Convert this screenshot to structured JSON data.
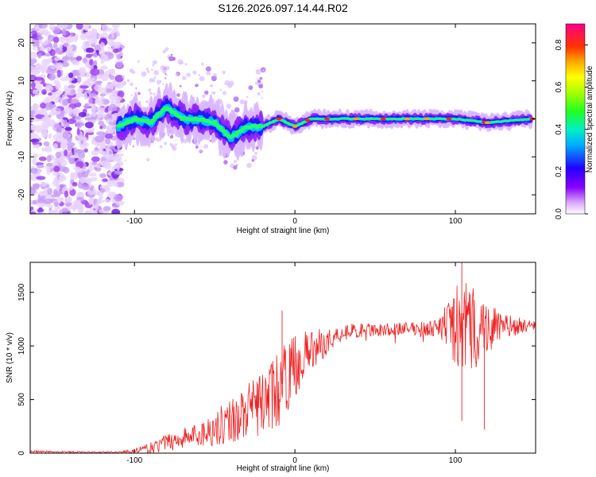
{
  "title": "S126.2026.097.14.44.R02",
  "chart_data": [
    {
      "type": "heatmap",
      "xlabel": "Height of straight line (km)",
      "ylabel": "Frequency (Hz)",
      "xlim": [
        -165,
        150
      ],
      "ylim": [
        -25,
        25
      ],
      "xticks": [
        {
          "value": -100,
          "label": "-100"
        },
        {
          "value": 0,
          "label": "0"
        },
        {
          "value": 100,
          "label": "100"
        }
      ],
      "yticks": [
        {
          "value": -20,
          "label": "-20"
        },
        {
          "value": -10,
          "label": "-10"
        },
        {
          "value": 0,
          "label": "0"
        },
        {
          "value": 10,
          "label": "10"
        },
        {
          "value": 20,
          "label": "20"
        }
      ],
      "ridge": {
        "x": [
          -110,
          -100,
          -90,
          -80,
          -70,
          -60,
          -50,
          -40,
          -30,
          -20,
          -10,
          0,
          10,
          20,
          40,
          60,
          80,
          100,
          120,
          148
        ],
        "frequency": [
          -2,
          0,
          -1,
          3,
          0,
          0,
          -1,
          -5,
          -2,
          -2,
          0,
          -2,
          0,
          0,
          0,
          0,
          0,
          0,
          -1,
          0
        ]
      },
      "noise_region": {
        "x_start": -165,
        "x_end": -108
      },
      "colorbar": {
        "label": "Normalized spectral amplitude",
        "range": [
          0,
          0.9
        ],
        "ticks": [
          {
            "value": 0.0,
            "label": "0.0"
          },
          {
            "value": 0.2,
            "label": "0.2"
          },
          {
            "value": 0.4,
            "label": "0.4"
          },
          {
            "value": 0.6,
            "label": "0.6"
          },
          {
            "value": 0.8,
            "label": "0.8"
          }
        ]
      }
    },
    {
      "type": "line",
      "xlabel": "Height of straight line (km)",
      "ylabel": "SNR (10 * v/v)",
      "xlim": [
        -165,
        150
      ],
      "ylim": [
        0,
        1780
      ],
      "color": "#ee2222",
      "xticks": [
        {
          "value": -100,
          "label": "-100"
        },
        {
          "value": 0,
          "label": "0"
        },
        {
          "value": 100,
          "label": "100"
        }
      ],
      "yticks": [
        {
          "value": 0,
          "label": "0"
        },
        {
          "value": 500,
          "label": "500"
        },
        {
          "value": 1000,
          "label": "1000"
        },
        {
          "value": 1500,
          "label": "1500"
        }
      ],
      "envelope": {
        "x": [
          -165,
          -130,
          -110,
          -100,
          -90,
          -80,
          -70,
          -60,
          -50,
          -40,
          -30,
          -20,
          -10,
          0,
          10,
          20,
          30,
          50,
          70,
          90,
          100,
          110,
          120,
          130,
          150
        ],
        "base": [
          15,
          8,
          10,
          20,
          40,
          100,
          140,
          170,
          230,
          310,
          380,
          470,
          600,
          820,
          960,
          1040,
          1130,
          1150,
          1160,
          1170,
          1180,
          1160,
          1170,
          1180,
          1190
        ],
        "amplitude": [
          10,
          8,
          6,
          20,
          60,
          80,
          100,
          120,
          160,
          220,
          260,
          300,
          350,
          300,
          200,
          120,
          80,
          60,
          60,
          80,
          400,
          450,
          250,
          120,
          40
        ]
      },
      "notable_points": [
        {
          "x": -8,
          "y": 1330
        },
        {
          "x": 104,
          "y": 1780
        },
        {
          "x": 104,
          "y": 300
        },
        {
          "x": 118,
          "y": 220
        }
      ]
    }
  ]
}
